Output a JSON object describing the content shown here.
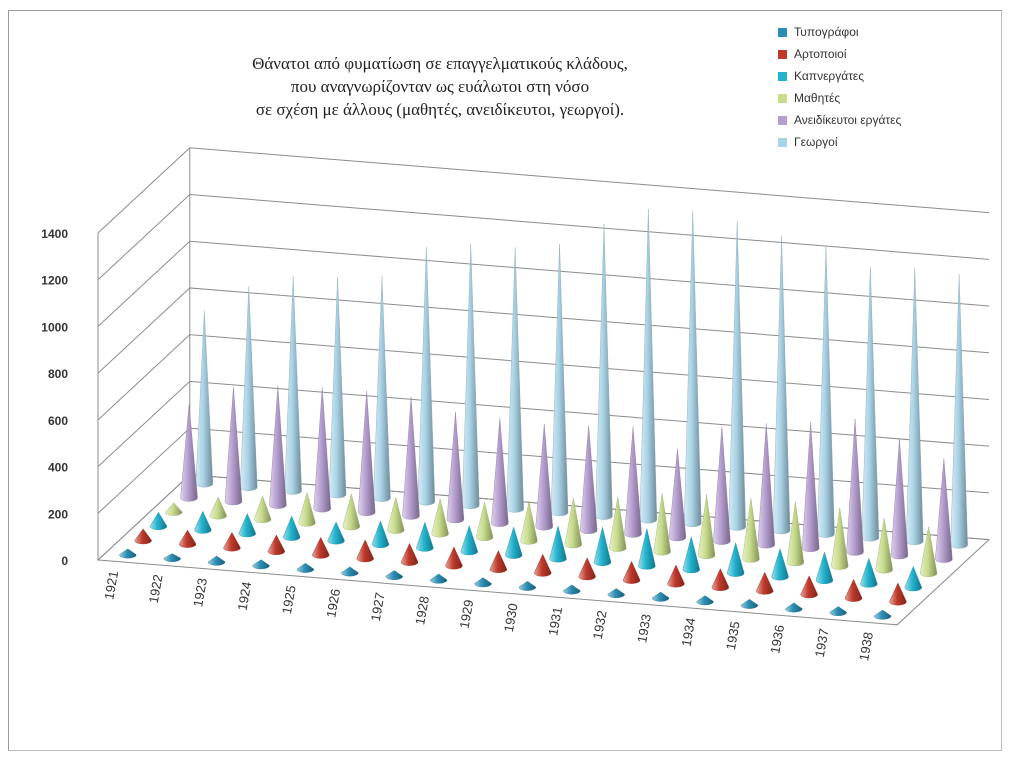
{
  "title_lines": [
    "Θάνατοι από φυματίωση σε επαγγελματικούς κλάδους,",
    "που αναγνωρίζονταν ως ευάλωτοι στη νόσο",
    "σε σχέση με άλλους (μαθητές, ανειδίκευτοι, γεωργοί)."
  ],
  "chart_data": {
    "type": "bar",
    "shape": "cone",
    "projection": "3d",
    "title": "Θάνατοι από φυματίωση σε επαγγελματικούς κλάδους, που αναγνωρίζονταν ως ευάλωτοι στη νόσο σε σχέση με άλλους (μαθητές, ανειδίκευτοι, γεωργοί).",
    "categories": [
      "1921",
      "1922",
      "1923",
      "1924",
      "1925",
      "1926",
      "1927",
      "1928",
      "1929",
      "1930",
      "1931",
      "1932",
      "1933",
      "1934",
      "1935",
      "1936",
      "1937",
      "1938"
    ],
    "y_ticks": [
      "0",
      "200",
      "400",
      "600",
      "800",
      "1000",
      "1200",
      "1400"
    ],
    "ylim": [
      0,
      1400
    ],
    "grid": true,
    "legend_position": "top-right",
    "series": [
      {
        "name": "Τυπογράφοι",
        "color": "#2b8fb5",
        "values": [
          25,
          20,
          25,
          25,
          25,
          25,
          25,
          25,
          25,
          25,
          25,
          25,
          25,
          25,
          25,
          25,
          25,
          25
        ]
      },
      {
        "name": "Αρτοποιοί",
        "color": "#c0392b",
        "values": [
          50,
          60,
          65,
          70,
          75,
          80,
          80,
          80,
          80,
          80,
          80,
          80,
          80,
          80,
          80,
          80,
          80,
          80
        ]
      },
      {
        "name": "Καπνεργάτες",
        "color": "#22b3cf",
        "values": [
          60,
          80,
          85,
          90,
          80,
          100,
          110,
          110,
          120,
          140,
          150,
          160,
          140,
          130,
          120,
          120,
          110,
          90
        ]
      },
      {
        "name": "Μαθητές",
        "color": "#c8dc8c",
        "values": [
          40,
          80,
          100,
          130,
          140,
          140,
          150,
          150,
          170,
          200,
          220,
          250,
          260,
          260,
          260,
          250,
          220,
          200
        ]
      },
      {
        "name": "Ανειδίκευτοι εργάτες",
        "color": "#b59ed0",
        "values": [
          400,
          490,
          510,
          520,
          520,
          510,
          460,
          450,
          440,
          450,
          460,
          380,
          490,
          520,
          540,
          570,
          500,
          430
        ]
      },
      {
        "name": "Γεωργοί",
        "color": "#a9d3e6",
        "values": [
          740,
          860,
          920,
          930,
          950,
          1090,
          1120,
          1120,
          1150,
          1250,
          1330,
          1340,
          1310,
          1260,
          1230,
          1160,
          1170,
          1160
        ]
      }
    ]
  }
}
